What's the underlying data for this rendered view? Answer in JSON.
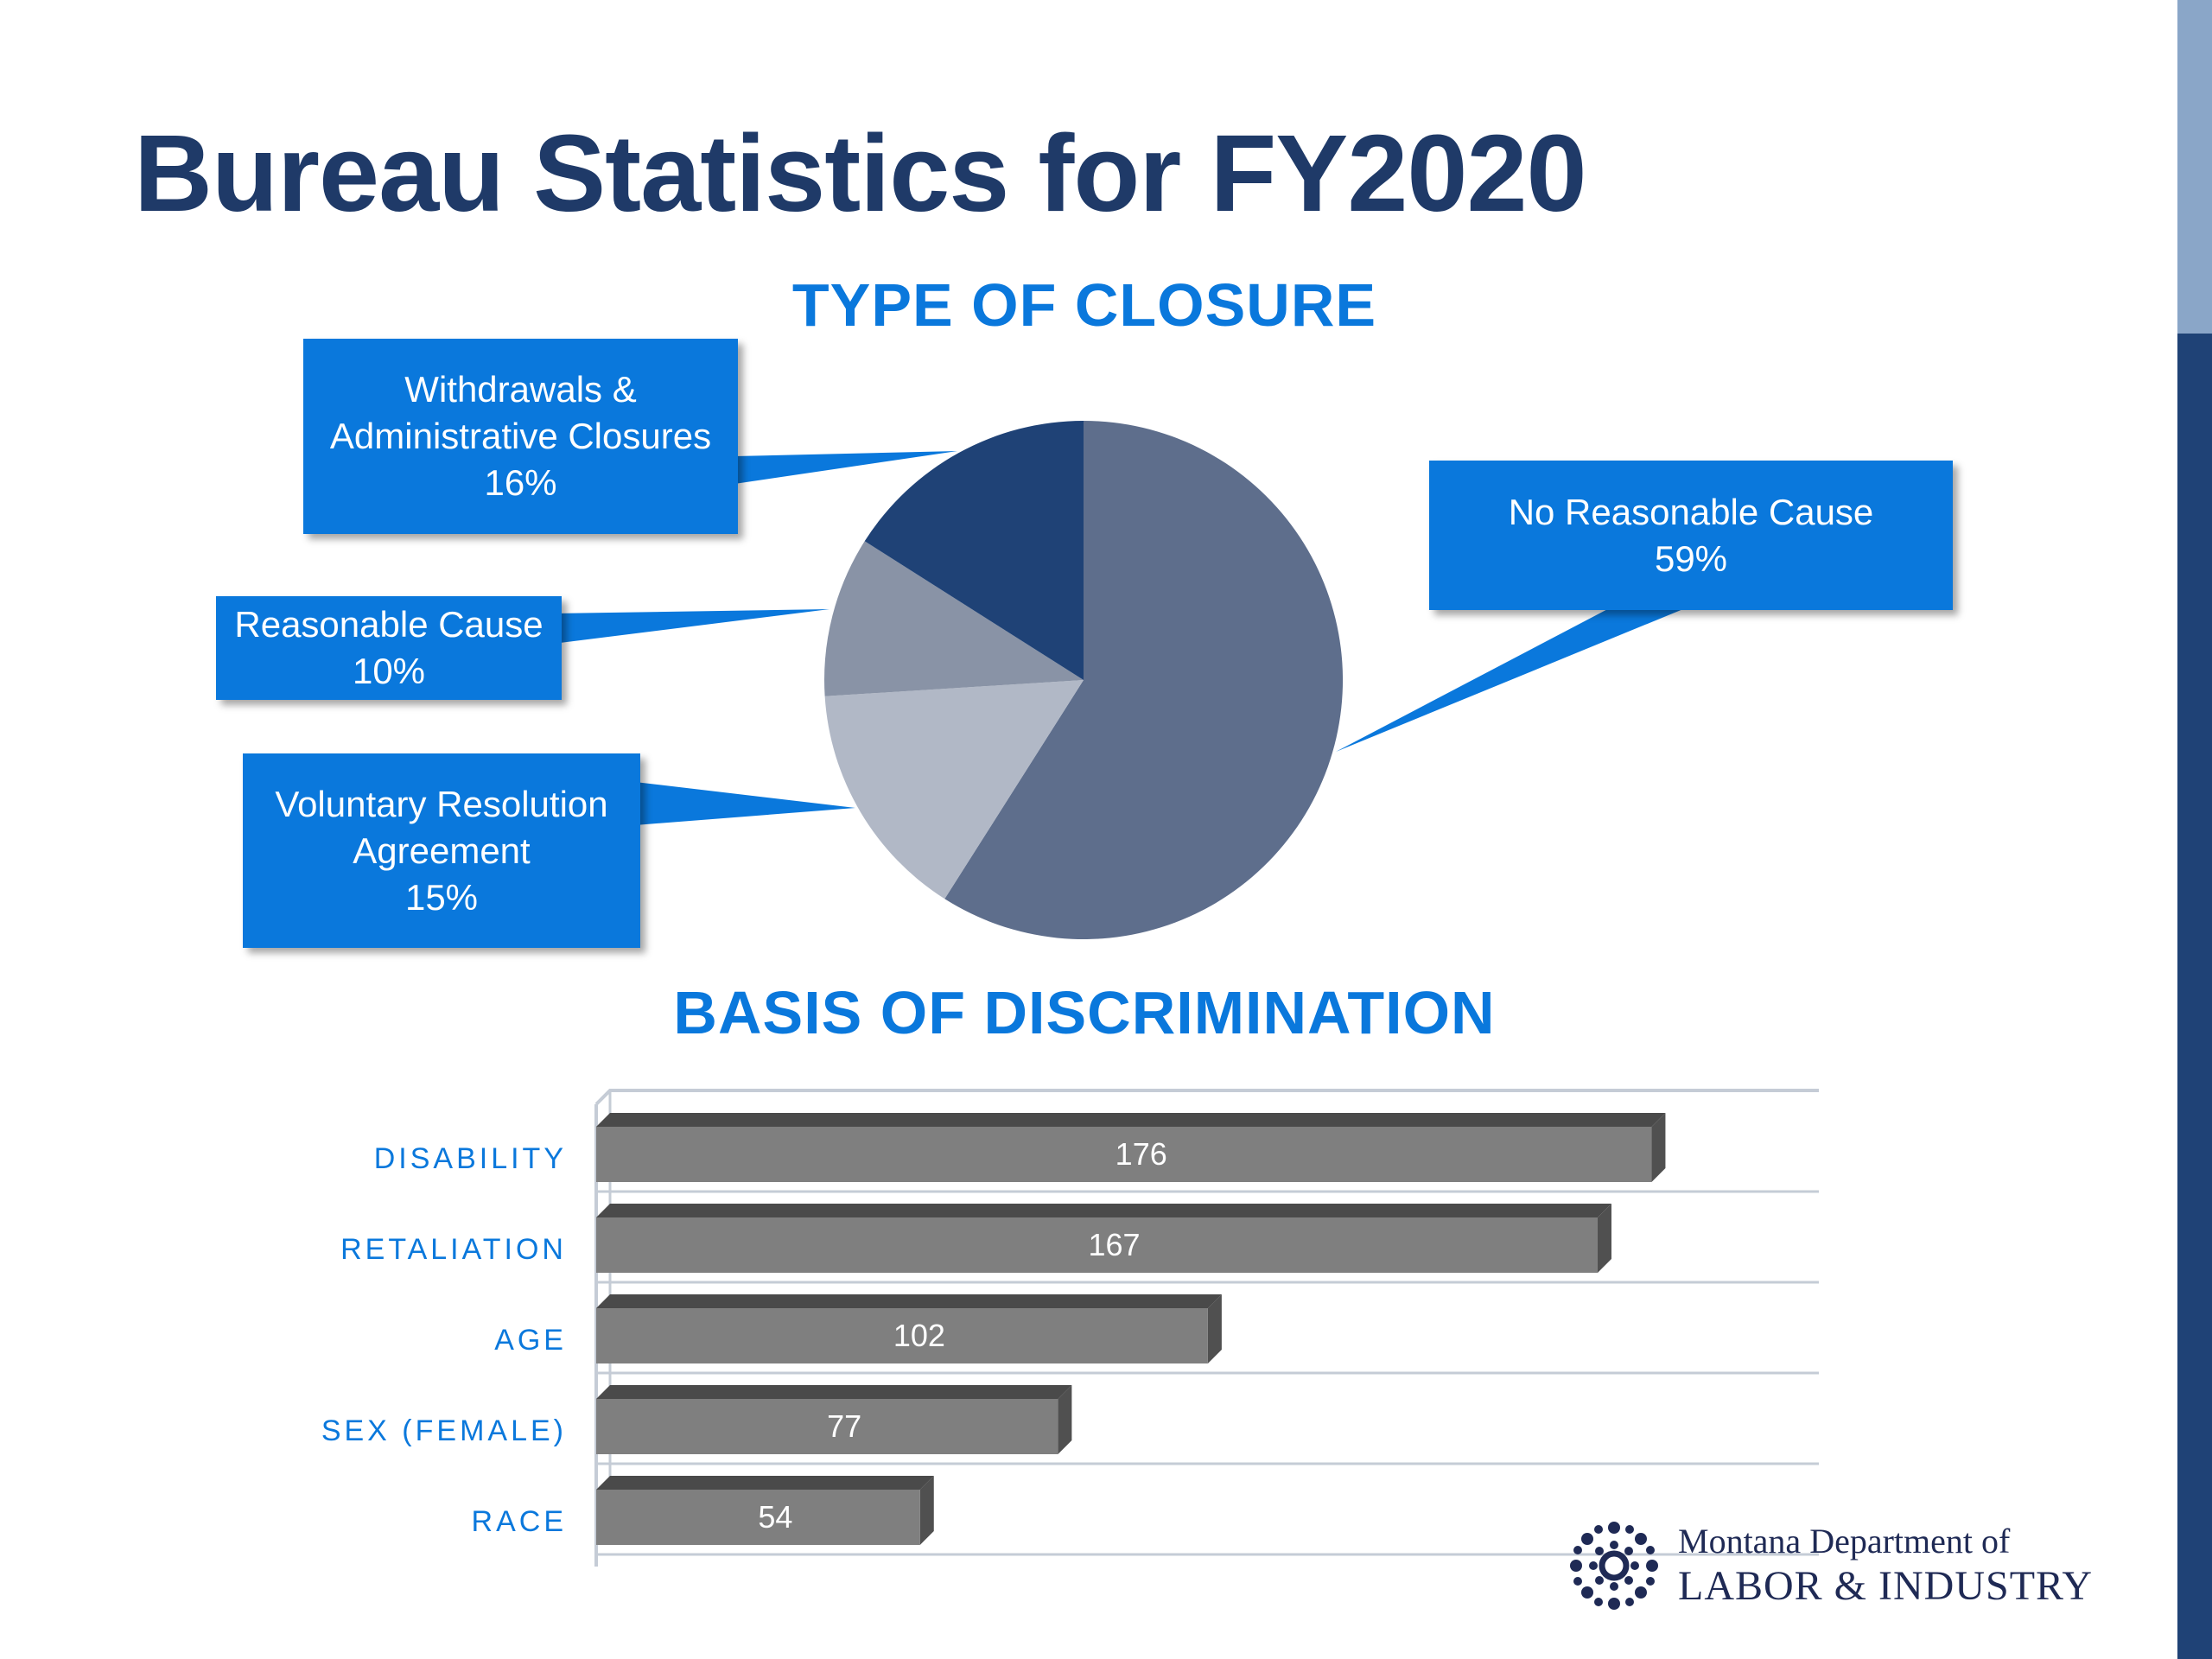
{
  "slide": {
    "title": "Bureau Statistics for FY2020"
  },
  "logo": {
    "line1": "Montana Department of",
    "line2": "LABOR & INDUSTRY"
  },
  "chart_data": [
    {
      "type": "pie",
      "title": "TYPE OF CLOSURE",
      "slices": [
        {
          "label": "No Reasonable Cause",
          "percent_label": "59%",
          "value": 59,
          "color": "#5e6e8c"
        },
        {
          "label": "Voluntary Resolution Agreement",
          "label_lines": [
            "Voluntary Resolution",
            "Agreement"
          ],
          "percent_label": "15%",
          "value": 15,
          "color": "#b1b8c6"
        },
        {
          "label": "Reasonable Cause",
          "label_lines": [
            "Reasonable Cause"
          ],
          "percent_label": "10%",
          "value": 10,
          "color": "#8993a6"
        },
        {
          "label": "Withdrawals & Administrative Closures",
          "label_lines": [
            "Withdrawals &",
            "Administrative Closures"
          ],
          "percent_label": "16%",
          "value": 16,
          "color": "#1f4276"
        }
      ],
      "label_style": "callouts",
      "callout_color": "#0a78dc"
    },
    {
      "type": "bar",
      "orientation": "horizontal",
      "style": "3d",
      "title": "BASIS OF DISCRIMINATION",
      "categories": [
        "DISABILITY",
        "RETALIATION",
        "AGE",
        "SEX (FEMALE)",
        "RACE"
      ],
      "values": [
        176,
        167,
        102,
        77,
        54
      ],
      "bar_color": "#7f7f7f",
      "category_label_color": "#0a78dc",
      "grid": true,
      "xlim": [
        0,
        200
      ]
    }
  ]
}
